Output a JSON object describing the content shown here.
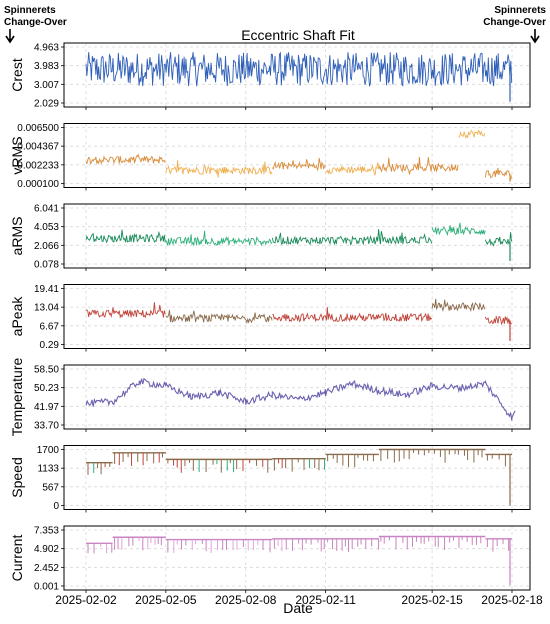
{
  "annotations": {
    "left": [
      "Spinnerets",
      "Change-Over"
    ],
    "right": [
      "Spinnerets",
      "Change-Over"
    ]
  },
  "chart_data": {
    "type": "line",
    "title": "Eccentric Shaft Fit",
    "xlabel": "Date",
    "x_ticks": [
      "2025-02-02",
      "2025-02-05",
      "2025-02-08",
      "2025-02-11",
      "2025-02-15",
      "2025-02-18"
    ],
    "x_range": [
      "2025-02-02",
      "2025-02-18"
    ],
    "grid": true,
    "panels": [
      {
        "ylabel": "Crest",
        "ticks": [
          "4.963",
          "3.983",
          "3.007",
          "2.029"
        ],
        "ylim": [
          2.029,
          4.963
        ],
        "colors": [
          "#2f5fb8",
          "#4a78c8"
        ],
        "style": "noise",
        "segments": [
          {
            "x": [
              "2025-02-02",
              "2025-02-18"
            ],
            "lo": 2.9,
            "hi": 4.7,
            "base": 3.75
          }
        ],
        "end_drop": 2.1
      },
      {
        "ylabel": "vRMS",
        "ticks": [
          "0.006500",
          "0.004367",
          "0.002233",
          "0.000100"
        ],
        "ylim": [
          0.0001,
          0.0065
        ],
        "colors": [
          "#d98c3a",
          "#f0b050"
        ],
        "style": "level",
        "segments": [
          {
            "x": [
              "2025-02-02",
              "2025-02-05"
            ],
            "base": 0.0028
          },
          {
            "x": [
              "2025-02-05",
              "2025-02-09"
            ],
            "base": 0.0016
          },
          {
            "x": [
              "2025-02-09",
              "2025-02-11"
            ],
            "base": 0.0021
          },
          {
            "x": [
              "2025-02-11",
              "2025-02-13"
            ],
            "base": 0.0017
          },
          {
            "x": [
              "2025-02-13",
              "2025-02-16"
            ],
            "base": 0.0019
          },
          {
            "x": [
              "2025-02-16",
              "2025-02-17"
            ],
            "base": 0.0058
          },
          {
            "x": [
              "2025-02-17",
              "2025-02-18"
            ],
            "base": 0.0012
          }
        ],
        "end_drop": 0.0003
      },
      {
        "ylabel": "aRMS",
        "ticks": [
          "6.041",
          "4.053",
          "2.066",
          "0.078"
        ],
        "ylim": [
          0.078,
          6.041
        ],
        "colors": [
          "#1a8a5a",
          "#2fb07a"
        ],
        "style": "level",
        "segments": [
          {
            "x": [
              "2025-02-02",
              "2025-02-05"
            ],
            "base": 2.8
          },
          {
            "x": [
              "2025-02-05",
              "2025-02-09"
            ],
            "base": 2.5
          },
          {
            "x": [
              "2025-02-09",
              "2025-02-15"
            ],
            "base": 2.6
          },
          {
            "x": [
              "2025-02-15",
              "2025-02-17"
            ],
            "base": 3.6
          },
          {
            "x": [
              "2025-02-17",
              "2025-02-18"
            ],
            "base": 2.4
          }
        ],
        "end_drop": 0.4
      },
      {
        "ylabel": "aPeak",
        "ticks": [
          "19.41",
          "13.04",
          "6.67",
          "0.29"
        ],
        "ylim": [
          0.29,
          19.41
        ],
        "colors": [
          "#c0443a",
          "#8a6a4a"
        ],
        "style": "level",
        "segments": [
          {
            "x": [
              "2025-02-02",
              "2025-02-05"
            ],
            "base": 10.8
          },
          {
            "x": [
              "2025-02-05",
              "2025-02-09"
            ],
            "base": 9.2
          },
          {
            "x": [
              "2025-02-09",
              "2025-02-15"
            ],
            "base": 9.5
          },
          {
            "x": [
              "2025-02-15",
              "2025-02-17"
            ],
            "base": 13.2
          },
          {
            "x": [
              "2025-02-17",
              "2025-02-18"
            ],
            "base": 8.5
          }
        ],
        "end_drop": 1.5
      },
      {
        "ylabel": "Temperature",
        "ticks": [
          "58.50",
          "50.23",
          "41.97",
          "33.70"
        ],
        "ylim": [
          33.7,
          58.5
        ],
        "colors": [
          "#6a62b0"
        ],
        "style": "walk",
        "keypoints": [
          [
            "2025-02-02",
            43
          ],
          [
            "2025-02-03",
            44
          ],
          [
            "2025-02-04",
            53
          ],
          [
            "2025-02-05",
            51
          ],
          [
            "2025-02-06",
            46
          ],
          [
            "2025-02-07",
            48
          ],
          [
            "2025-02-08",
            44
          ],
          [
            "2025-02-09",
            47
          ],
          [
            "2025-02-10",
            45
          ],
          [
            "2025-02-11",
            48
          ],
          [
            "2025-02-12",
            52
          ],
          [
            "2025-02-13",
            49
          ],
          [
            "2025-02-14",
            47
          ],
          [
            "2025-02-15",
            51
          ],
          [
            "2025-02-16",
            50
          ],
          [
            "2025-02-17",
            52
          ],
          [
            "2025-02-18",
            37
          ]
        ],
        "end_points": [
          [
            "2025-02-18",
            40
          ]
        ]
      },
      {
        "ylabel": "Speed",
        "ticks": [
          "1700",
          "1133",
          "567",
          "0"
        ],
        "ylim": [
          0,
          1700
        ],
        "colors": [
          "#8a6a4a",
          "#c0443a",
          "#2fb07a"
        ],
        "style": "speed",
        "segments": [
          {
            "x": [
              "2025-02-02",
              "2025-02-03"
            ],
            "base": 1300
          },
          {
            "x": [
              "2025-02-03",
              "2025-02-05"
            ],
            "base": 1600
          },
          {
            "x": [
              "2025-02-05",
              "2025-02-09"
            ],
            "base": 1400
          },
          {
            "x": [
              "2025-02-09",
              "2025-02-11"
            ],
            "base": 1420
          },
          {
            "x": [
              "2025-02-11",
              "2025-02-13"
            ],
            "base": 1550
          },
          {
            "x": [
              "2025-02-13",
              "2025-02-17"
            ],
            "base": 1700
          },
          {
            "x": [
              "2025-02-17",
              "2025-02-18"
            ],
            "base": 1550
          }
        ],
        "end_drop": 0
      },
      {
        "ylabel": "Current",
        "ticks": [
          "7.353",
          "4.902",
          "2.452",
          "0.001"
        ],
        "ylim": [
          0.001,
          7.353
        ],
        "colors": [
          "#c883c0",
          "#e3a6dc"
        ],
        "style": "speed",
        "segments": [
          {
            "x": [
              "2025-02-02",
              "2025-02-03"
            ],
            "base": 5.6
          },
          {
            "x": [
              "2025-02-03",
              "2025-02-05"
            ],
            "base": 6.4
          },
          {
            "x": [
              "2025-02-05",
              "2025-02-09"
            ],
            "base": 6.1
          },
          {
            "x": [
              "2025-02-09",
              "2025-02-11"
            ],
            "base": 6.2
          },
          {
            "x": [
              "2025-02-11",
              "2025-02-13"
            ],
            "base": 6.2
          },
          {
            "x": [
              "2025-02-13",
              "2025-02-17"
            ],
            "base": 6.5
          },
          {
            "x": [
              "2025-02-17",
              "2025-02-18"
            ],
            "base": 6.2
          }
        ],
        "end_drop": 0.1
      }
    ]
  }
}
